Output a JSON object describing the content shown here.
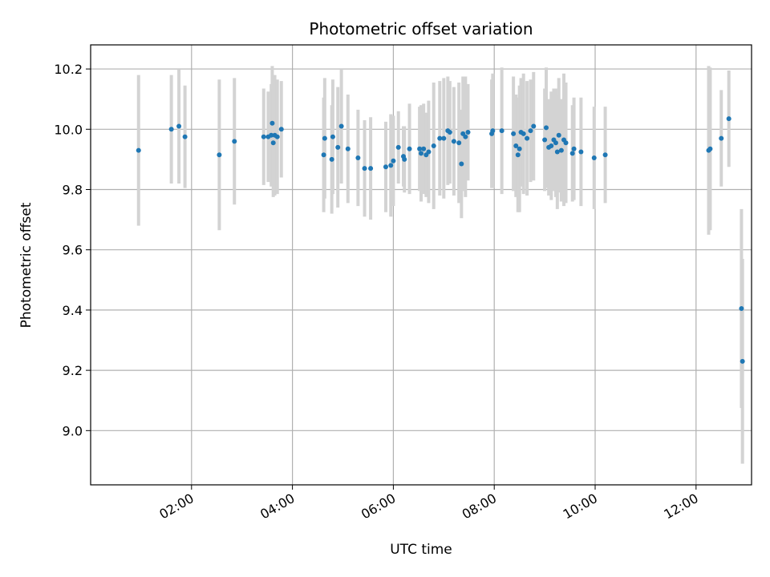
{
  "chart_data": {
    "type": "scatter",
    "title": "Photometric offset variation",
    "xlabel": "UTC time",
    "ylabel": "Photometric offset",
    "x_unit": "hours UTC",
    "xlim": [
      0.0,
      13.1
    ],
    "ylim": [
      8.82,
      10.28
    ],
    "grid": true,
    "x_tick_values": [
      2,
      4,
      6,
      8,
      10,
      12
    ],
    "x_tick_labels": [
      "02:00",
      "04:00",
      "06:00",
      "08:00",
      "10:00",
      "12:00"
    ],
    "y_tick_values": [
      9.0,
      9.2,
      9.4,
      9.6,
      9.8,
      10.0,
      10.2
    ],
    "y_tick_labels": [
      "9.0",
      "9.2",
      "9.4",
      "9.6",
      "9.8",
      "10.0",
      "10.2"
    ],
    "colors": {
      "point": "#1f77b4",
      "errorbar": "#d3d3d3",
      "grid": "#b0b0b0"
    },
    "series": [
      {
        "x": [
          0.95,
          1.6,
          1.75,
          1.87,
          2.55,
          2.85,
          3.43,
          3.52,
          3.58,
          3.6,
          3.62,
          3.65,
          3.7,
          3.78,
          4.62,
          4.64,
          4.78,
          4.8,
          4.9,
          4.97,
          5.1,
          5.3,
          5.43,
          5.55,
          5.85,
          5.95,
          6.0,
          6.1,
          6.2,
          6.22,
          6.32,
          6.52,
          6.55,
          6.6,
          6.65,
          6.7,
          6.8,
          6.92,
          7.0,
          7.08,
          7.12,
          7.2,
          7.3,
          7.35,
          7.38,
          7.43,
          7.48,
          7.95,
          7.97,
          8.15,
          8.38,
          8.43,
          8.47,
          8.5,
          8.53,
          8.58,
          8.65,
          8.72,
          8.78,
          9.0,
          9.03,
          9.08,
          9.13,
          9.18,
          9.22,
          9.25,
          9.28,
          9.33,
          9.38,
          9.42,
          9.55,
          9.58,
          9.72,
          9.98,
          10.2,
          12.25,
          12.28,
          12.5,
          12.65,
          12.9,
          12.92
        ],
        "y": [
          9.93,
          10.0,
          10.01,
          9.975,
          9.915,
          9.96,
          9.975,
          9.975,
          9.98,
          10.02,
          9.955,
          9.98,
          9.975,
          10.0,
          9.915,
          9.97,
          9.9,
          9.975,
          9.94,
          10.01,
          9.935,
          9.905,
          9.87,
          9.87,
          9.875,
          9.88,
          9.895,
          9.94,
          9.91,
          9.9,
          9.935,
          9.935,
          9.92,
          9.935,
          9.915,
          9.925,
          9.945,
          9.97,
          9.97,
          9.995,
          9.99,
          9.96,
          9.955,
          9.885,
          9.985,
          9.975,
          9.99,
          9.985,
          9.995,
          9.995,
          9.985,
          9.945,
          9.915,
          9.935,
          9.99,
          9.985,
          9.97,
          9.995,
          10.01,
          9.965,
          10.005,
          9.94,
          9.945,
          9.965,
          9.955,
          9.925,
          9.98,
          9.93,
          9.965,
          9.955,
          9.92,
          9.935,
          9.925,
          9.905,
          9.915,
          9.93,
          9.935,
          9.97,
          10.035,
          9.405,
          9.23
        ],
        "err": [
          0.25,
          0.18,
          0.19,
          0.17,
          0.25,
          0.21,
          0.16,
          0.15,
          0.17,
          0.19,
          0.18,
          0.2,
          0.19,
          0.16,
          0.19,
          0.2,
          0.18,
          0.19,
          0.2,
          0.19,
          0.18,
          0.16,
          0.16,
          0.17,
          0.15,
          0.17,
          0.15,
          0.12,
          0.1,
          0.11,
          0.15,
          0.14,
          0.16,
          0.15,
          0.14,
          0.17,
          0.21,
          0.19,
          0.2,
          0.18,
          0.17,
          0.18,
          0.2,
          0.18,
          0.19,
          0.2,
          0.16,
          0.18,
          0.19,
          0.21,
          0.19,
          0.17,
          0.19,
          0.21,
          0.18,
          0.2,
          0.19,
          0.17,
          0.18,
          0.17,
          0.2,
          0.16,
          0.18,
          0.17,
          0.18,
          0.19,
          0.19,
          0.17,
          0.22,
          0.2,
          0.16,
          0.17,
          0.18,
          0.17,
          0.16,
          0.28,
          0.27,
          0.16,
          0.16,
          0.33,
          0.34
        ]
      }
    ]
  }
}
